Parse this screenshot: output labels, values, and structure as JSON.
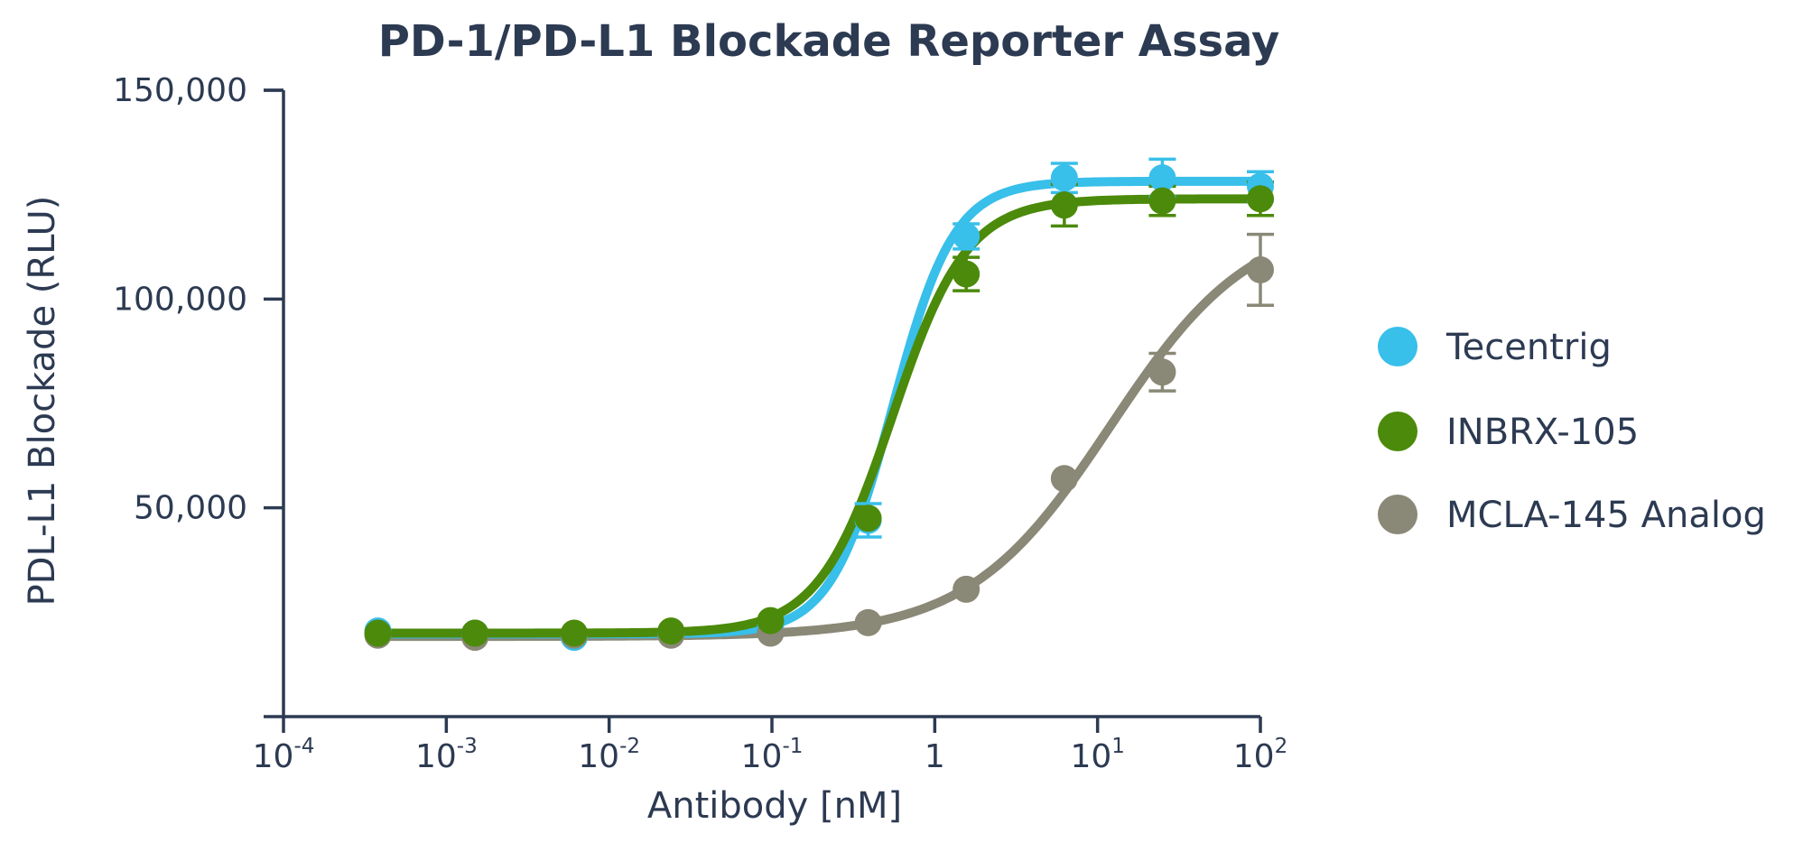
{
  "chart_data": {
    "type": "scatter",
    "title": "PD-1/PD-L1 Blockade Reporter Assay",
    "xlabel": "Antibody [nM]",
    "ylabel": "PDL-L1 Blockade (RLU)",
    "x_scale": "log",
    "xlim": [
      0.0001,
      100
    ],
    "ylim": [
      0,
      150000
    ],
    "grid": false,
    "legend_position": "right",
    "x_ticks": [
      {
        "value": 0.0001,
        "base": "10",
        "exp": "-4"
      },
      {
        "value": 0.001,
        "base": "10",
        "exp": "-3"
      },
      {
        "value": 0.01,
        "base": "10",
        "exp": "-2"
      },
      {
        "value": 0.1,
        "base": "10",
        "exp": "-1"
      },
      {
        "value": 1,
        "base": "1",
        "exp": ""
      },
      {
        "value": 10,
        "base": "10",
        "exp": "1"
      },
      {
        "value": 100,
        "base": "10",
        "exp": "2"
      }
    ],
    "y_ticks": [
      {
        "value": 50000,
        "label": "50,000"
      },
      {
        "value": 100000,
        "label": "100,000"
      },
      {
        "value": 150000,
        "label": "150,000"
      }
    ],
    "series": [
      {
        "name": "Tecentrig",
        "color": "#38bfea",
        "x": [
          0.00038,
          0.0015,
          0.0061,
          0.024,
          0.098,
          0.39,
          1.56,
          6.25,
          25,
          100
        ],
        "y": [
          20500,
          20000,
          19000,
          20000,
          21500,
          47000,
          115000,
          129000,
          129000,
          127000
        ],
        "error": [
          0,
          0,
          0,
          0,
          0,
          4000,
          3000,
          3500,
          4500,
          3500
        ],
        "fit": {
          "bottom": 19800,
          "top": 128200,
          "ec50": 0.55,
          "hill": 2.3
        }
      },
      {
        "name": "INBRX-105",
        "color": "#4b8a0a",
        "x": [
          0.00038,
          0.0015,
          0.0061,
          0.024,
          0.098,
          0.39,
          1.56,
          6.25,
          25,
          100
        ],
        "y": [
          20000,
          20000,
          20000,
          20500,
          23000,
          47500,
          106000,
          122500,
          123500,
          124000
        ],
        "error": [
          0,
          0,
          0,
          0,
          0,
          0,
          4000,
          5000,
          3500,
          4000
        ],
        "fit": {
          "bottom": 20000,
          "top": 124000,
          "ec50": 0.55,
          "hill": 1.9
        }
      },
      {
        "name": "MCLA-145 Analog",
        "color": "#8a8876",
        "x": [
          0.00038,
          0.0015,
          0.0061,
          0.024,
          0.098,
          0.39,
          1.56,
          6.25,
          25,
          100
        ],
        "y": [
          19500,
          19000,
          19500,
          19500,
          20000,
          22500,
          30500,
          57000,
          82500,
          107000
        ],
        "error": [
          0,
          0,
          0,
          0,
          0,
          0,
          0,
          0,
          4500,
          8500
        ],
        "fit": {
          "bottom": 19200,
          "top": 120000,
          "ec50": 12,
          "hill": 1.0
        }
      }
    ]
  }
}
